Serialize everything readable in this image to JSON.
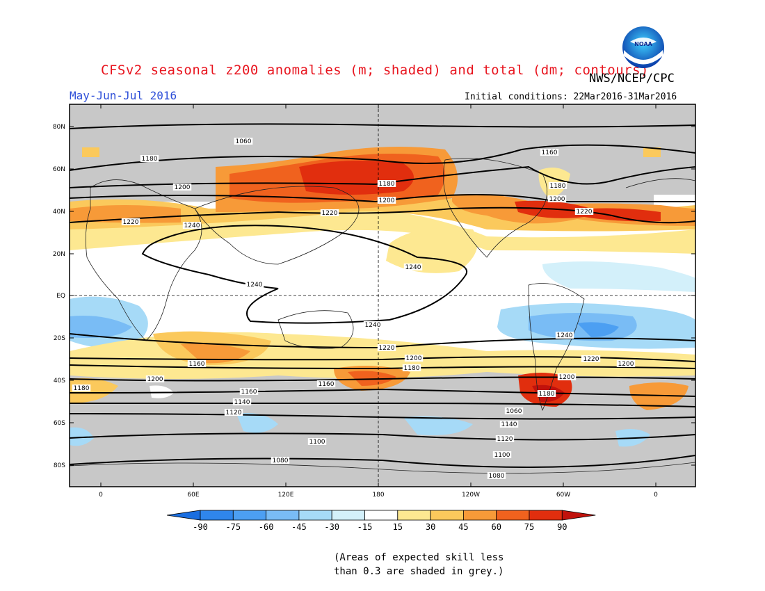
{
  "header": {
    "title": "CFSv2 seasonal z200 anomalies (m; shaded) and total (dm; contours)",
    "organization": "NWS/NCEP/CPC",
    "season": "May-Jun-Jul 2016",
    "initial_conditions": "Initial conditions: 22Mar2016-31Mar2016"
  },
  "logo": {
    "text": "NOAA",
    "icon": "noaa-logo-icon"
  },
  "map": {
    "lat_ticks": [
      "80N",
      "60N",
      "40N",
      "20N",
      "EQ",
      "20S",
      "40S",
      "60S",
      "80S"
    ],
    "lon_ticks": [
      "0",
      "60E",
      "120E",
      "180",
      "120W",
      "60W",
      "0"
    ],
    "contour_labels": [
      "1160",
      "1180",
      "1200",
      "1220",
      "1240",
      "1240",
      "1220",
      "1180",
      "1200",
      "1220",
      "1160",
      "1180",
      "1200",
      "1240",
      "1240",
      "1160",
      "1180",
      "1200",
      "1220",
      "1240",
      "1220",
      "1200",
      "1180",
      "1160",
      "1200",
      "1220",
      "1200",
      "1180",
      "1160",
      "1140",
      "1120",
      "1100",
      "1080",
      "1060",
      "1140",
      "1120",
      "1100",
      "1080",
      "1060"
    ],
    "colors": {
      "neg90": "#1a6ee0",
      "neg75": "#2f86ec",
      "neg60": "#4c9ff2",
      "neg45": "#79bcf5",
      "neg30": "#a6daf7",
      "neg15": "#d3f0fa",
      "neutral": "#ffffff",
      "pos15": "#fde891",
      "pos30": "#fbc95c",
      "pos45": "#f79a38",
      "pos60": "#f0621e",
      "pos75": "#e12e0e",
      "pos90": "#c1120c",
      "grey": "#c8c8c8"
    }
  },
  "colorbar": {
    "labels": [
      "-90",
      "-75",
      "-60",
      "-45",
      "-30",
      "-15",
      "15",
      "30",
      "45",
      "60",
      "75",
      "90"
    ]
  },
  "note": {
    "line1": "(Areas of expected skill less",
    "line2": "than 0.3 are shaded in grey.)"
  }
}
